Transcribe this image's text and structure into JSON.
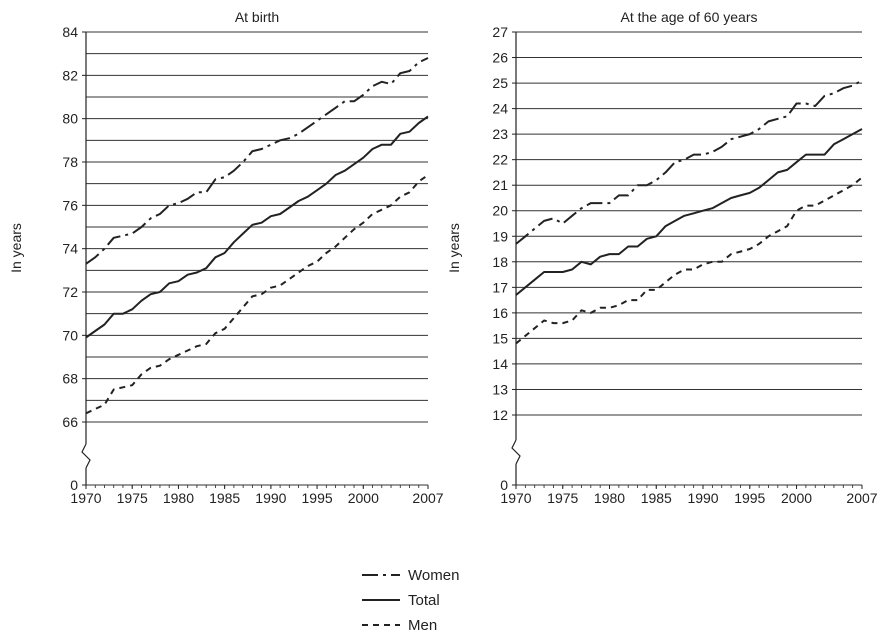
{
  "chart_data": [
    {
      "type": "line",
      "title": "At birth",
      "ylabel": "In years",
      "xlabel": "",
      "x_ticks": [
        "1970",
        "1975",
        "1980",
        "1985",
        "1990",
        "1995",
        "2000",
        "2007"
      ],
      "y_ticks": [
        "0",
        "66",
        "68",
        "70",
        "72",
        "74",
        "76",
        "78",
        "80",
        "82",
        "84"
      ],
      "y_axis_break": {
        "from": 0,
        "to": 66
      },
      "ylim": [
        66,
        84
      ],
      "grid": "horizontal, every 1 year",
      "x": [
        1970,
        1971,
        1972,
        1973,
        1974,
        1975,
        1976,
        1977,
        1978,
        1979,
        1980,
        1981,
        1982,
        1983,
        1984,
        1985,
        1986,
        1987,
        1988,
        1989,
        1990,
        1991,
        1992,
        1993,
        1994,
        1995,
        1996,
        1997,
        1998,
        1999,
        2000,
        2001,
        2002,
        2003,
        2004,
        2005,
        2006,
        2007
      ],
      "series": [
        {
          "name": "Women",
          "style": "dash-dot",
          "values": [
            73.3,
            73.6,
            74.0,
            74.5,
            74.6,
            74.7,
            75.0,
            75.4,
            75.6,
            76.0,
            76.1,
            76.3,
            76.6,
            76.6,
            77.2,
            77.3,
            77.6,
            78.0,
            78.5,
            78.6,
            78.8,
            79.0,
            79.1,
            79.3,
            79.6,
            79.9,
            80.2,
            80.5,
            80.8,
            80.8,
            81.1,
            81.5,
            81.7,
            81.6,
            82.1,
            82.2,
            82.6,
            82.8
          ]
        },
        {
          "name": "Total",
          "style": "solid",
          "values": [
            69.9,
            70.2,
            70.5,
            71.0,
            71.0,
            71.2,
            71.6,
            71.9,
            72.0,
            72.4,
            72.5,
            72.8,
            72.9,
            73.1,
            73.6,
            73.8,
            74.3,
            74.7,
            75.1,
            75.2,
            75.5,
            75.6,
            75.9,
            76.2,
            76.4,
            76.7,
            77.0,
            77.4,
            77.6,
            77.9,
            78.2,
            78.6,
            78.8,
            78.8,
            79.3,
            79.4,
            79.8,
            80.1
          ]
        },
        {
          "name": "Men",
          "style": "dashed",
          "values": [
            66.4,
            66.6,
            66.8,
            67.5,
            67.6,
            67.7,
            68.2,
            68.5,
            68.6,
            68.9,
            69.1,
            69.3,
            69.5,
            69.6,
            70.1,
            70.3,
            70.8,
            71.3,
            71.8,
            71.9,
            72.2,
            72.3,
            72.6,
            72.9,
            73.2,
            73.4,
            73.8,
            74.1,
            74.5,
            74.9,
            75.2,
            75.6,
            75.8,
            76.0,
            76.4,
            76.6,
            77.1,
            77.4
          ]
        }
      ]
    },
    {
      "type": "line",
      "title": "At the age of  60 years",
      "ylabel": "In years",
      "xlabel": "",
      "x_ticks": [
        "1970",
        "1975",
        "1980",
        "1985",
        "1990",
        "1995",
        "2000",
        "2007"
      ],
      "y_ticks": [
        "0",
        "12",
        "13",
        "14",
        "15",
        "16",
        "17",
        "18",
        "19",
        "20",
        "21",
        "22",
        "23",
        "24",
        "25",
        "26",
        "27"
      ],
      "y_axis_break": {
        "from": 0,
        "to": 12
      },
      "ylim": [
        12,
        27
      ],
      "grid": "horizontal, every 1 year",
      "x": [
        1970,
        1971,
        1972,
        1973,
        1974,
        1975,
        1976,
        1977,
        1978,
        1979,
        1980,
        1981,
        1982,
        1983,
        1984,
        1985,
        1986,
        1987,
        1988,
        1989,
        1990,
        1991,
        1992,
        1993,
        1994,
        1995,
        1996,
        1997,
        1998,
        1999,
        2000,
        2001,
        2002,
        2003,
        2004,
        2005,
        2006,
        2007
      ],
      "series": [
        {
          "name": "Women",
          "style": "dash-dot",
          "values": [
            18.7,
            19.0,
            19.3,
            19.6,
            19.7,
            19.5,
            19.8,
            20.1,
            20.3,
            20.3,
            20.3,
            20.6,
            20.6,
            21.0,
            21.0,
            21.2,
            21.5,
            21.9,
            22.0,
            22.2,
            22.2,
            22.3,
            22.5,
            22.8,
            22.9,
            23.0,
            23.2,
            23.5,
            23.6,
            23.7,
            24.2,
            24.2,
            24.1,
            24.5,
            24.6,
            24.8,
            24.9,
            25.1
          ]
        },
        {
          "name": "Total",
          "style": "solid",
          "values": [
            16.7,
            17.0,
            17.3,
            17.6,
            17.6,
            17.6,
            17.7,
            18.0,
            17.9,
            18.2,
            18.3,
            18.3,
            18.6,
            18.6,
            18.9,
            19.0,
            19.4,
            19.6,
            19.8,
            19.9,
            20.0,
            20.1,
            20.3,
            20.5,
            20.6,
            20.7,
            20.9,
            21.2,
            21.5,
            21.6,
            21.9,
            22.2,
            22.2,
            22.2,
            22.6,
            22.8,
            23.0,
            23.2
          ]
        },
        {
          "name": "Men",
          "style": "dashed",
          "values": [
            14.8,
            15.1,
            15.4,
            15.7,
            15.6,
            15.6,
            15.7,
            16.1,
            16.0,
            16.2,
            16.2,
            16.3,
            16.5,
            16.5,
            16.9,
            16.9,
            17.2,
            17.5,
            17.7,
            17.7,
            17.9,
            18.0,
            18.0,
            18.3,
            18.4,
            18.5,
            18.7,
            19.0,
            19.2,
            19.4,
            20.0,
            20.2,
            20.2,
            20.4,
            20.6,
            20.8,
            21.0,
            21.3
          ]
        }
      ]
    }
  ],
  "legend": [
    {
      "label": "Women",
      "style": "dash-dot"
    },
    {
      "label": "Total",
      "style": "solid"
    },
    {
      "label": "Men",
      "style": "dashed"
    }
  ],
  "colors": {
    "line": "#222222",
    "grid": "#333333",
    "background": "#ffffff"
  }
}
